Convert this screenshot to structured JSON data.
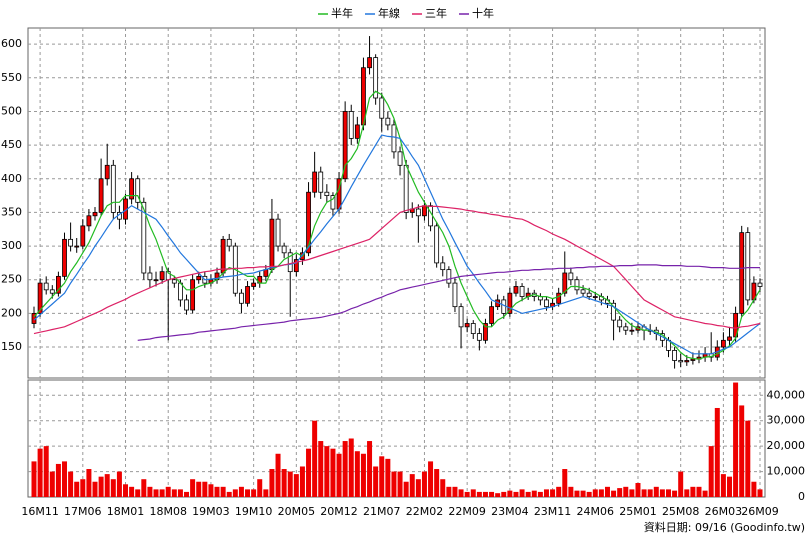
{
  "chart_data": {
    "type": "candlestick",
    "categories": [
      null,
      "16M11",
      null,
      null,
      null,
      null,
      null,
      null,
      "17M06",
      null,
      null,
      null,
      null,
      null,
      null,
      "18M01",
      null,
      null,
      null,
      null,
      null,
      null,
      "18M08",
      null,
      null,
      null,
      null,
      null,
      null,
      "19M03",
      null,
      null,
      null,
      null,
      null,
      null,
      "19M10",
      null,
      null,
      null,
      null,
      null,
      null,
      "20M05",
      null,
      null,
      null,
      null,
      null,
      null,
      "20M12",
      null,
      null,
      null,
      null,
      null,
      null,
      "21M07",
      null,
      null,
      null,
      null,
      null,
      null,
      "22M02",
      null,
      null,
      null,
      null,
      null,
      null,
      "22M09",
      null,
      null,
      null,
      null,
      null,
      null,
      "23M04",
      null,
      null,
      null,
      null,
      null,
      null,
      "23M11",
      null,
      null,
      null,
      null,
      null,
      null,
      "24M06",
      null,
      null,
      null,
      null,
      null,
      null,
      "25M01",
      null,
      null,
      null,
      null,
      null,
      null,
      "25M08",
      null,
      null,
      null,
      null,
      null,
      null,
      "26M03",
      null,
      null,
      null,
      null,
      null,
      "26M09"
    ],
    "candles": [
      [
        185,
        210,
        178,
        200
      ],
      [
        200,
        252,
        195,
        245
      ],
      [
        245,
        255,
        228,
        235
      ],
      [
        235,
        242,
        222,
        230
      ],
      [
        230,
        262,
        225,
        255
      ],
      [
        255,
        320,
        250,
        310
      ],
      [
        310,
        335,
        292,
        300
      ],
      [
        300,
        312,
        290,
        300
      ],
      [
        300,
        340,
        295,
        330
      ],
      [
        330,
        355,
        322,
        345
      ],
      [
        345,
        358,
        338,
        350
      ],
      [
        350,
        430,
        345,
        400
      ],
      [
        400,
        452,
        390,
        420
      ],
      [
        420,
        428,
        340,
        350
      ],
      [
        350,
        360,
        325,
        340
      ],
      [
        340,
        378,
        332,
        370
      ],
      [
        370,
        410,
        362,
        400
      ],
      [
        400,
        405,
        355,
        365
      ],
      [
        365,
        372,
        250,
        260
      ],
      [
        260,
        270,
        238,
        250
      ],
      [
        250,
        262,
        240,
        250
      ],
      [
        250,
        270,
        244,
        262
      ],
      [
        262,
        268,
        160,
        250
      ],
      [
        250,
        256,
        238,
        245
      ],
      [
        245,
        250,
        210,
        220
      ],
      [
        220,
        228,
        198,
        205
      ],
      [
        205,
        258,
        200,
        250
      ],
      [
        250,
        262,
        244,
        255
      ],
      [
        255,
        262,
        238,
        245
      ],
      [
        245,
        258,
        240,
        250
      ],
      [
        250,
        268,
        244,
        260
      ],
      [
        260,
        315,
        255,
        310
      ],
      [
        310,
        318,
        292,
        300
      ],
      [
        300,
        305,
        225,
        230
      ],
      [
        230,
        236,
        200,
        215
      ],
      [
        215,
        248,
        210,
        240
      ],
      [
        240,
        252,
        235,
        245
      ],
      [
        245,
        262,
        238,
        255
      ],
      [
        255,
        272,
        248,
        265
      ],
      [
        265,
        370,
        260,
        340
      ],
      [
        340,
        348,
        292,
        300
      ],
      [
        300,
        305,
        282,
        290
      ],
      [
        290,
        296,
        195,
        262
      ],
      [
        262,
        288,
        255,
        280
      ],
      [
        280,
        298,
        272,
        290
      ],
      [
        290,
        395,
        285,
        380
      ],
      [
        380,
        440,
        372,
        410
      ],
      [
        410,
        418,
        370,
        380
      ],
      [
        380,
        392,
        365,
        375
      ],
      [
        375,
        380,
        345,
        355
      ],
      [
        355,
        410,
        348,
        400
      ],
      [
        400,
        515,
        395,
        500
      ],
      [
        500,
        510,
        450,
        460
      ],
      [
        460,
        492,
        452,
        480
      ],
      [
        480,
        580,
        472,
        565
      ],
      [
        565,
        612,
        555,
        580
      ],
      [
        580,
        585,
        510,
        520
      ],
      [
        520,
        528,
        470,
        490
      ],
      [
        490,
        500,
        472,
        480
      ],
      [
        480,
        488,
        430,
        440
      ],
      [
        440,
        448,
        405,
        420
      ],
      [
        420,
        428,
        340,
        350
      ],
      [
        350,
        365,
        342,
        355
      ],
      [
        355,
        362,
        305,
        345
      ],
      [
        345,
        368,
        338,
        360
      ],
      [
        360,
        365,
        322,
        330
      ],
      [
        330,
        336,
        268,
        275
      ],
      [
        275,
        285,
        255,
        265
      ],
      [
        265,
        270,
        238,
        245
      ],
      [
        245,
        252,
        202,
        210
      ],
      [
        210,
        215,
        148,
        180
      ],
      [
        180,
        192,
        172,
        185
      ],
      [
        185,
        190,
        162,
        170
      ],
      [
        170,
        178,
        145,
        160
      ],
      [
        160,
        192,
        155,
        185
      ],
      [
        185,
        218,
        180,
        210
      ],
      [
        210,
        228,
        205,
        220
      ],
      [
        220,
        226,
        192,
        200
      ],
      [
        200,
        238,
        195,
        230
      ],
      [
        230,
        248,
        225,
        240
      ],
      [
        240,
        245,
        218,
        225
      ],
      [
        225,
        238,
        220,
        230
      ],
      [
        230,
        235,
        218,
        225
      ],
      [
        225,
        230,
        212,
        220
      ],
      [
        220,
        225,
        204,
        210
      ],
      [
        210,
        222,
        205,
        215
      ],
      [
        215,
        238,
        210,
        230
      ],
      [
        230,
        292,
        225,
        260
      ],
      [
        260,
        268,
        242,
        250
      ],
      [
        250,
        255,
        228,
        235
      ],
      [
        235,
        242,
        225,
        230
      ],
      [
        230,
        238,
        220,
        225
      ],
      [
        225,
        232,
        218,
        225
      ],
      [
        225,
        230,
        212,
        220
      ],
      [
        220,
        226,
        208,
        215
      ],
      [
        215,
        220,
        160,
        190
      ],
      [
        190,
        196,
        172,
        180
      ],
      [
        180,
        186,
        168,
        175
      ],
      [
        175,
        186,
        168,
        175
      ],
      [
        175,
        188,
        170,
        180
      ],
      [
        180,
        184,
        160,
        175
      ],
      [
        175,
        184,
        168,
        175
      ],
      [
        175,
        180,
        160,
        170
      ],
      [
        170,
        175,
        150,
        160
      ],
      [
        160,
        165,
        135,
        145
      ],
      [
        145,
        150,
        118,
        130
      ],
      [
        130,
        140,
        120,
        128
      ],
      [
        128,
        138,
        122,
        130
      ],
      [
        130,
        142,
        124,
        132
      ],
      [
        132,
        145,
        126,
        135
      ],
      [
        135,
        150,
        128,
        140
      ],
      [
        140,
        172,
        128,
        135
      ],
      [
        135,
        160,
        130,
        150
      ],
      [
        150,
        172,
        142,
        160
      ],
      [
        160,
        180,
        150,
        165
      ],
      [
        165,
        210,
        158,
        200
      ],
      [
        200,
        330,
        195,
        320
      ],
      [
        320,
        328,
        212,
        220
      ],
      [
        220,
        255,
        215,
        245
      ],
      [
        245,
        252,
        232,
        240
      ]
    ],
    "up_color": "#ee0000",
    "down_color": "#ffffff",
    "series": [
      {
        "name": "半年",
        "color": "#22bb22",
        "values": [
          195,
          205,
          215,
          225,
          235,
          245,
          262,
          275,
          290,
          305,
          325,
          345,
          360,
          365,
          365,
          375,
          375,
          375,
          355,
          330,
          310,
          285,
          260,
          255,
          245,
          235,
          235,
          240,
          243,
          245,
          250,
          260,
          268,
          265,
          260,
          255,
          255,
          245,
          245,
          265,
          270,
          280,
          285,
          290,
          285,
          300,
          330,
          350,
          365,
          370,
          385,
          420,
          430,
          445,
          480,
          520,
          530,
          525,
          510,
          490,
          460,
          420,
          400,
          380,
          365,
          350,
          335,
          320,
          300,
          270,
          245,
          225,
          205,
          190,
          180,
          180,
          190,
          195,
          205,
          215,
          220,
          225,
          228,
          225,
          225,
          222,
          225,
          232,
          240,
          240,
          238,
          235,
          230,
          225,
          220,
          210,
          200,
          190,
          182,
          178,
          175,
          175,
          172,
          168,
          160,
          152,
          142,
          135,
          133,
          132,
          135,
          136,
          140,
          145,
          152,
          163,
          195,
          205,
          220,
          235
        ]
      },
      {
        "name": "年線",
        "color": "#2277dd",
        "values": [
          190,
          198,
          206,
          214,
          222,
          230,
          245,
          258,
          272,
          285,
          300,
          313,
          327,
          340,
          347,
          353,
          360,
          355,
          350,
          345,
          340,
          328,
          315,
          303,
          290,
          280,
          270,
          260,
          250,
          251,
          252,
          254,
          255,
          256,
          258,
          259,
          260,
          263,
          265,
          268,
          270,
          272,
          273,
          275,
          287,
          298,
          310,
          321,
          333,
          344,
          355,
          371,
          388,
          404,
          420,
          435,
          450,
          465,
          463,
          462,
          460,
          447,
          433,
          420,
          400,
          380,
          360,
          340,
          323,
          305,
          288,
          270,
          258,
          245,
          233,
          220,
          216,
          212,
          208,
          204,
          200,
          202,
          204,
          206,
          208,
          210,
          213,
          216,
          219,
          222,
          225,
          222,
          219,
          216,
          213,
          210,
          204,
          198,
          192,
          186,
          180,
          175,
          170,
          165,
          160,
          155,
          150,
          145,
          140,
          140,
          140,
          140,
          143,
          147,
          150,
          157,
          164,
          171,
          178,
          185
        ]
      },
      {
        "name": "三年",
        "color": "#dd2266",
        "values": [
          170,
          172,
          174,
          176,
          178,
          180,
          184,
          188,
          192,
          196,
          200,
          204,
          209,
          213,
          217,
          221,
          226,
          230,
          234,
          238,
          242,
          246,
          250,
          252,
          254,
          256,
          258,
          260,
          262,
          263,
          265,
          266,
          266,
          267,
          267,
          268,
          268,
          269,
          269,
          270,
          270,
          272,
          274,
          276,
          278,
          280,
          283,
          286,
          289,
          292,
          295,
          298,
          301,
          304,
          307,
          310,
          318,
          326,
          334,
          342,
          350,
          353,
          355,
          358,
          360,
          359,
          359,
          358,
          357,
          356,
          355,
          353,
          352,
          350,
          349,
          347,
          346,
          344,
          343,
          341,
          340,
          336,
          331,
          327,
          323,
          318,
          314,
          310,
          305,
          300,
          295,
          290,
          285,
          280,
          275,
          270,
          260,
          250,
          240,
          230,
          220,
          215,
          210,
          205,
          200,
          195,
          193,
          191,
          189,
          187,
          185,
          184,
          182,
          181,
          179,
          178,
          180,
          181,
          183,
          185
        ]
      },
      {
        "name": "十年",
        "color": "#7722aa",
        "values": [
          null,
          null,
          null,
          null,
          null,
          null,
          null,
          null,
          null,
          null,
          null,
          null,
          null,
          null,
          null,
          null,
          null,
          160,
          161,
          162,
          164,
          165,
          166,
          167,
          168,
          169,
          170,
          172,
          173,
          174,
          175,
          176,
          177,
          178,
          180,
          181,
          182,
          183,
          184,
          185,
          186,
          187,
          189,
          190,
          191,
          192,
          193,
          194,
          196,
          198,
          200,
          203,
          207,
          210,
          214,
          217,
          221,
          224,
          228,
          231,
          235,
          237,
          239,
          241,
          243,
          245,
          247,
          249,
          251,
          253,
          255,
          256,
          257,
          258,
          259,
          260,
          261,
          261,
          262,
          263,
          264,
          264,
          265,
          265,
          266,
          266,
          267,
          267,
          267,
          268,
          268,
          269,
          269,
          270,
          270,
          270,
          271,
          271,
          271,
          272,
          272,
          272,
          272,
          271,
          271,
          271,
          271,
          270,
          270,
          270,
          269,
          268,
          268,
          268,
          267,
          267,
          267,
          268,
          268,
          268
        ]
      }
    ],
    "ylim": [
      104,
      624
    ],
    "yticks": [
      150,
      200,
      250,
      300,
      350,
      400,
      450,
      500,
      550,
      600
    ],
    "volume": {
      "color": "#ee0000",
      "values": [
        14000,
        19000,
        20000,
        10000,
        13000,
        14000,
        10000,
        6000,
        7000,
        11000,
        6000,
        8000,
        9000,
        7000,
        10000,
        5000,
        4000,
        3000,
        7000,
        4000,
        3000,
        3000,
        4000,
        3000,
        3000,
        2000,
        7000,
        6000,
        6000,
        5000,
        4000,
        4000,
        2000,
        3000,
        4000,
        3000,
        3000,
        7000,
        3000,
        11000,
        17000,
        11000,
        10000,
        9000,
        12000,
        19000,
        30000,
        22000,
        20000,
        19000,
        17000,
        22000,
        23000,
        18000,
        17000,
        22000,
        12000,
        16000,
        15000,
        10000,
        10000,
        6000,
        9000,
        7000,
        10000,
        14000,
        11000,
        7000,
        4000,
        4000,
        3000,
        2000,
        3000,
        2000,
        2000,
        2000,
        1500,
        2000,
        2500,
        2000,
        3000,
        2000,
        2500,
        2000,
        3000,
        3000,
        4000,
        11000,
        4000,
        2500,
        2500,
        2000,
        3000,
        3000,
        4000,
        2500,
        3500,
        4000,
        3000,
        5500,
        3000,
        3000,
        4000,
        3000,
        3000,
        2500,
        10000,
        3000,
        4000,
        4000,
        2500,
        20000,
        35000,
        9000,
        8000,
        45000,
        36000,
        30000,
        6000,
        3000
      ],
      "ylim": [
        0,
        46000
      ],
      "yticks": [
        0,
        {
          "value": 10000,
          "label": "10,000"
        },
        {
          "value": 20000,
          "label": "20,000"
        },
        {
          "value": 30000,
          "label": "30,000"
        },
        {
          "value": 40000,
          "label": "40,000"
        }
      ]
    },
    "grid": true,
    "source": "資料日期: 09/16 (Goodinfo.tw)"
  }
}
